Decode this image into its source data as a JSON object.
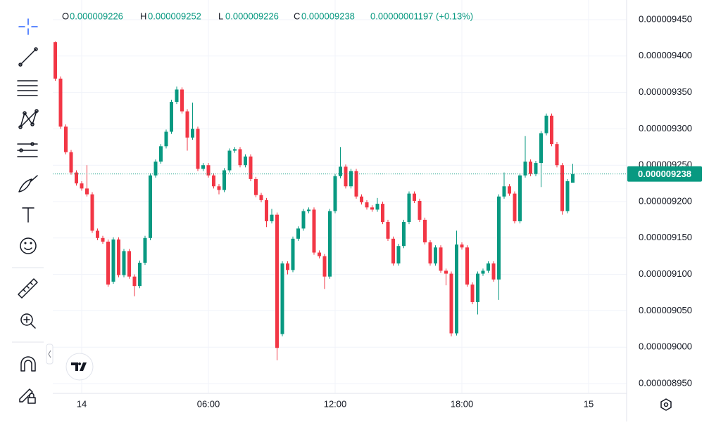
{
  "legend": {
    "o_label": "O",
    "open": "0.000009226",
    "h_label": "H",
    "high": "0.000009252",
    "l_label": "L",
    "low": "0.000009226",
    "c_label": "C",
    "close": "0.000009238",
    "change": "0.00000001197 (+0.13%)"
  },
  "chart_data": {
    "type": "candlestick",
    "up_color": "#089981",
    "down_color": "#f23645",
    "grid": true,
    "xlim": [
      -1.3667,
      25.8
    ],
    "ylim": [
      8.9365e-06,
      9.477e-06
    ],
    "xticks": [
      {
        "value": 0,
        "label": "14"
      },
      {
        "value": 6,
        "label": "06:00"
      },
      {
        "value": 12,
        "label": "12:00"
      },
      {
        "value": 18,
        "label": "18:00"
      },
      {
        "value": 24,
        "label": "15"
      }
    ],
    "yticks": [
      {
        "value": 8.95e-06,
        "label": "0.000008950"
      },
      {
        "value": 9e-06,
        "label": "0.000009000"
      },
      {
        "value": 9.05e-06,
        "label": "0.000009050"
      },
      {
        "value": 9.1e-06,
        "label": "0.000009100"
      },
      {
        "value": 9.15e-06,
        "label": "0.000009150"
      },
      {
        "value": 9.2e-06,
        "label": "0.000009200"
      },
      {
        "value": 9.25e-06,
        "label": "0.000009250"
      },
      {
        "value": 9.3e-06,
        "label": "0.000009300"
      },
      {
        "value": 9.35e-06,
        "label": "0.000009350"
      },
      {
        "value": 9.4e-06,
        "label": "0.000009400"
      },
      {
        "value": 9.45e-06,
        "label": "0.000009450"
      }
    ],
    "last_price": {
      "value": 9.238e-06,
      "label": "0.000009238"
    },
    "x": [
      -1.25,
      -1,
      -0.75,
      -0.5,
      -0.25,
      0,
      0.25,
      0.5,
      0.75,
      1,
      1.25,
      1.5,
      1.75,
      2,
      2.25,
      2.5,
      2.75,
      3,
      3.25,
      3.5,
      3.75,
      4,
      4.25,
      4.5,
      4.75,
      5,
      5.25,
      5.5,
      5.75,
      6,
      6.25,
      6.5,
      6.75,
      7,
      7.25,
      7.5,
      7.75,
      8,
      8.25,
      8.5,
      8.75,
      9,
      9.25,
      9.5,
      9.75,
      10,
      10.25,
      10.5,
      10.75,
      11,
      11.25,
      11.5,
      11.75,
      12,
      12.25,
      12.5,
      12.75,
      13,
      13.25,
      13.5,
      13.75,
      14,
      14.25,
      14.5,
      14.75,
      15,
      15.25,
      15.5,
      15.75,
      16,
      16.25,
      16.5,
      16.75,
      17,
      17.25,
      17.5,
      17.75,
      18,
      18.25,
      18.5,
      18.75,
      19,
      19.25,
      19.5,
      19.75,
      20,
      20.25,
      20.5,
      20.75,
      21,
      21.25,
      21.5,
      21.75,
      22,
      22.25,
      22.5,
      22.75,
      23,
      23.25
    ],
    "open": [
      9.419e-06,
      9.369e-06,
      9.303e-06,
      9.268e-06,
      9.24e-06,
      9.225e-06,
      9.218e-06,
      9.21e-06,
      9.16e-06,
      9.15e-06,
      9.145e-06,
      9.09e-06,
      9.148e-06,
      9.099e-06,
      9.132e-06,
      9.097e-06,
      9.084e-06,
      9.116e-06,
      9.15e-06,
      9.236e-06,
      9.255e-06,
      9.276e-06,
      9.296e-06,
      9.337e-06,
      9.354e-06,
      9.324e-06,
      9.288e-06,
      9.3e-06,
      9.245e-06,
      9.25e-06,
      9.236e-06,
      9.221e-06,
      9.216e-06,
      9.243e-06,
      9.27e-06,
      9.272e-06,
      9.25e-06,
      9.262e-06,
      9.231e-06,
      9.209e-06,
      9.202e-06,
      9.173e-06,
      9.182e-06,
      9.018e-06,
      9.115e-06,
      9.106e-06,
      9.149e-06,
      9.163e-06,
      9.187e-06,
      9.189e-06,
      9.13e-06,
      9.125e-06,
      9.097e-06,
      9.187e-06,
      9.235e-06,
      9.248e-06,
      9.221e-06,
      9.242e-06,
      9.207e-06,
      9.199e-06,
      9.192e-06,
      9.189e-06,
      9.197e-06,
      9.172e-06,
      9.149e-06,
      9.115e-06,
      9.139e-06,
      9.172e-06,
      9.211e-06,
      9.201e-06,
      9.175e-06,
      9.144e-06,
      9.115e-06,
      9.137e-06,
      9.105e-06,
      9.101e-06,
      9.019e-06,
      9.141e-06,
      9.137e-06,
      9.086e-06,
      9.062e-06,
      9.101e-06,
      9.105e-06,
      9.115e-06,
      9.093e-06,
      9.207e-06,
      9.221e-06,
      9.211e-06,
      9.173e-06,
      9.236e-06,
      9.255e-06,
      9.238e-06,
      9.253e-06,
      9.294e-06,
      9.318e-06,
      9.279e-06,
      9.25e-06,
      9.187e-06,
      9.226e-06
    ],
    "high": [
      9.42e-06,
      9.372e-06,
      9.306e-06,
      9.271e-06,
      9.243e-06,
      9.228e-06,
      9.25e-06,
      9.213e-06,
      9.163e-06,
      9.153e-06,
      9.148e-06,
      9.151e-06,
      9.151e-06,
      9.135e-06,
      9.135e-06,
      9.1e-06,
      9.119e-06,
      9.153e-06,
      9.239e-06,
      9.258e-06,
      9.279e-06,
      9.299e-06,
      9.34e-06,
      9.358e-06,
      9.357e-06,
      9.327e-06,
      9.336e-06,
      9.303e-06,
      9.253e-06,
      9.253e-06,
      9.239e-06,
      9.224e-06,
      9.246e-06,
      9.273e-06,
      9.275e-06,
      9.275e-06,
      9.265e-06,
      9.265e-06,
      9.234e-06,
      9.212e-06,
      9.205e-06,
      9.19e-06,
      9.185e-06,
      9.118e-06,
      9.118e-06,
      9.152e-06,
      9.166e-06,
      9.19e-06,
      9.192e-06,
      9.192e-06,
      9.133e-06,
      9.128e-06,
      9.19e-06,
      9.238e-06,
      9.275e-06,
      9.251e-06,
      9.245e-06,
      9.245e-06,
      9.21e-06,
      9.202e-06,
      9.195e-06,
      9.205e-06,
      9.2e-06,
      9.175e-06,
      9.152e-06,
      9.142e-06,
      9.175e-06,
      9.214e-06,
      9.214e-06,
      9.204e-06,
      9.178e-06,
      9.147e-06,
      9.14e-06,
      9.14e-06,
      9.108e-06,
      9.104e-06,
      9.16e-06,
      9.144e-06,
      9.14e-06,
      9.089e-06,
      9.104e-06,
      9.108e-06,
      9.118e-06,
      9.118e-06,
      9.21e-06,
      9.24e-06,
      9.224e-06,
      9.214e-06,
      9.239e-06,
      9.29e-06,
      9.258e-06,
      9.256e-06,
      9.297e-06,
      9.321e-06,
      9.321e-06,
      9.282e-06,
      9.253e-06,
      9.231e-06,
      9.252e-06
    ],
    "low": [
      9.366e-06,
      9.3e-06,
      9.265e-06,
      9.237e-06,
      9.222e-06,
      9.215e-06,
      9.207e-06,
      9.157e-06,
      9.147e-06,
      9.142e-06,
      9.083e-06,
      9.087e-06,
      9.096e-06,
      9.096e-06,
      9.094e-06,
      9.07e-06,
      9.081e-06,
      9.113e-06,
      9.147e-06,
      9.233e-06,
      9.252e-06,
      9.273e-06,
      9.293e-06,
      9.334e-06,
      9.321e-06,
      9.27e-06,
      9.285e-06,
      9.242e-06,
      9.242e-06,
      9.233e-06,
      9.218e-06,
      9.21e-06,
      9.213e-06,
      9.24e-06,
      9.267e-06,
      9.247e-06,
      9.247e-06,
      9.228e-06,
      9.206e-06,
      9.199e-06,
      9.165e-06,
      9.17e-06,
      8.982e-06,
      9.015e-06,
      9.1e-06,
      9.103e-06,
      9.146e-06,
      9.16e-06,
      9.184e-06,
      9.127e-06,
      9.122e-06,
      9.08e-06,
      9.094e-06,
      9.184e-06,
      9.232e-06,
      9.218e-06,
      9.218e-06,
      9.204e-06,
      9.196e-06,
      9.189e-06,
      9.186e-06,
      9.186e-06,
      9.169e-06,
      9.146e-06,
      9.112e-06,
      9.112e-06,
      9.136e-06,
      9.169e-06,
      9.198e-06,
      9.172e-06,
      9.141e-06,
      9.112e-06,
      9.112e-06,
      9.102e-06,
      9.085e-06,
      9.015e-06,
      9.016e-06,
      9.134e-06,
      9.083e-06,
      9.059e-06,
      9.045e-06,
      9.098e-06,
      9.102e-06,
      9.09e-06,
      9.065e-06,
      9.204e-06,
      9.208e-06,
      9.17e-06,
      9.17e-06,
      9.233e-06,
      9.235e-06,
      9.235e-06,
      9.22e-06,
      9.291e-06,
      9.276e-06,
      9.247e-06,
      9.182e-06,
      9.184e-06,
      9.226e-06
    ],
    "close": [
      9.369e-06,
      9.303e-06,
      9.268e-06,
      9.24e-06,
      9.225e-06,
      9.218e-06,
      9.21e-06,
      9.16e-06,
      9.15e-06,
      9.145e-06,
      9.086e-06,
      9.148e-06,
      9.099e-06,
      9.132e-06,
      9.097e-06,
      9.084e-06,
      9.116e-06,
      9.15e-06,
      9.236e-06,
      9.255e-06,
      9.276e-06,
      9.296e-06,
      9.337e-06,
      9.354e-06,
      9.324e-06,
      9.288e-06,
      9.3e-06,
      9.245e-06,
      9.25e-06,
      9.236e-06,
      9.221e-06,
      9.216e-06,
      9.243e-06,
      9.27e-06,
      9.272e-06,
      9.25e-06,
      9.262e-06,
      9.231e-06,
      9.209e-06,
      9.202e-06,
      9.173e-06,
      9.182e-06,
      8.999e-06,
      9.115e-06,
      9.106e-06,
      9.149e-06,
      9.163e-06,
      9.187e-06,
      9.189e-06,
      9.13e-06,
      9.125e-06,
      9.097e-06,
      9.187e-06,
      9.235e-06,
      9.248e-06,
      9.221e-06,
      9.242e-06,
      9.207e-06,
      9.199e-06,
      9.192e-06,
      9.189e-06,
      9.197e-06,
      9.172e-06,
      9.149e-06,
      9.115e-06,
      9.139e-06,
      9.172e-06,
      9.211e-06,
      9.201e-06,
      9.175e-06,
      9.144e-06,
      9.115e-06,
      9.137e-06,
      9.105e-06,
      9.101e-06,
      9.019e-06,
      9.141e-06,
      9.137e-06,
      9.086e-06,
      9.062e-06,
      9.101e-06,
      9.105e-06,
      9.115e-06,
      9.093e-06,
      9.207e-06,
      9.221e-06,
      9.211e-06,
      9.173e-06,
      9.236e-06,
      9.255e-06,
      9.238e-06,
      9.253e-06,
      9.294e-06,
      9.318e-06,
      9.279e-06,
      9.25e-06,
      9.187e-06,
      9.228e-06,
      9.238e-06
    ]
  }
}
